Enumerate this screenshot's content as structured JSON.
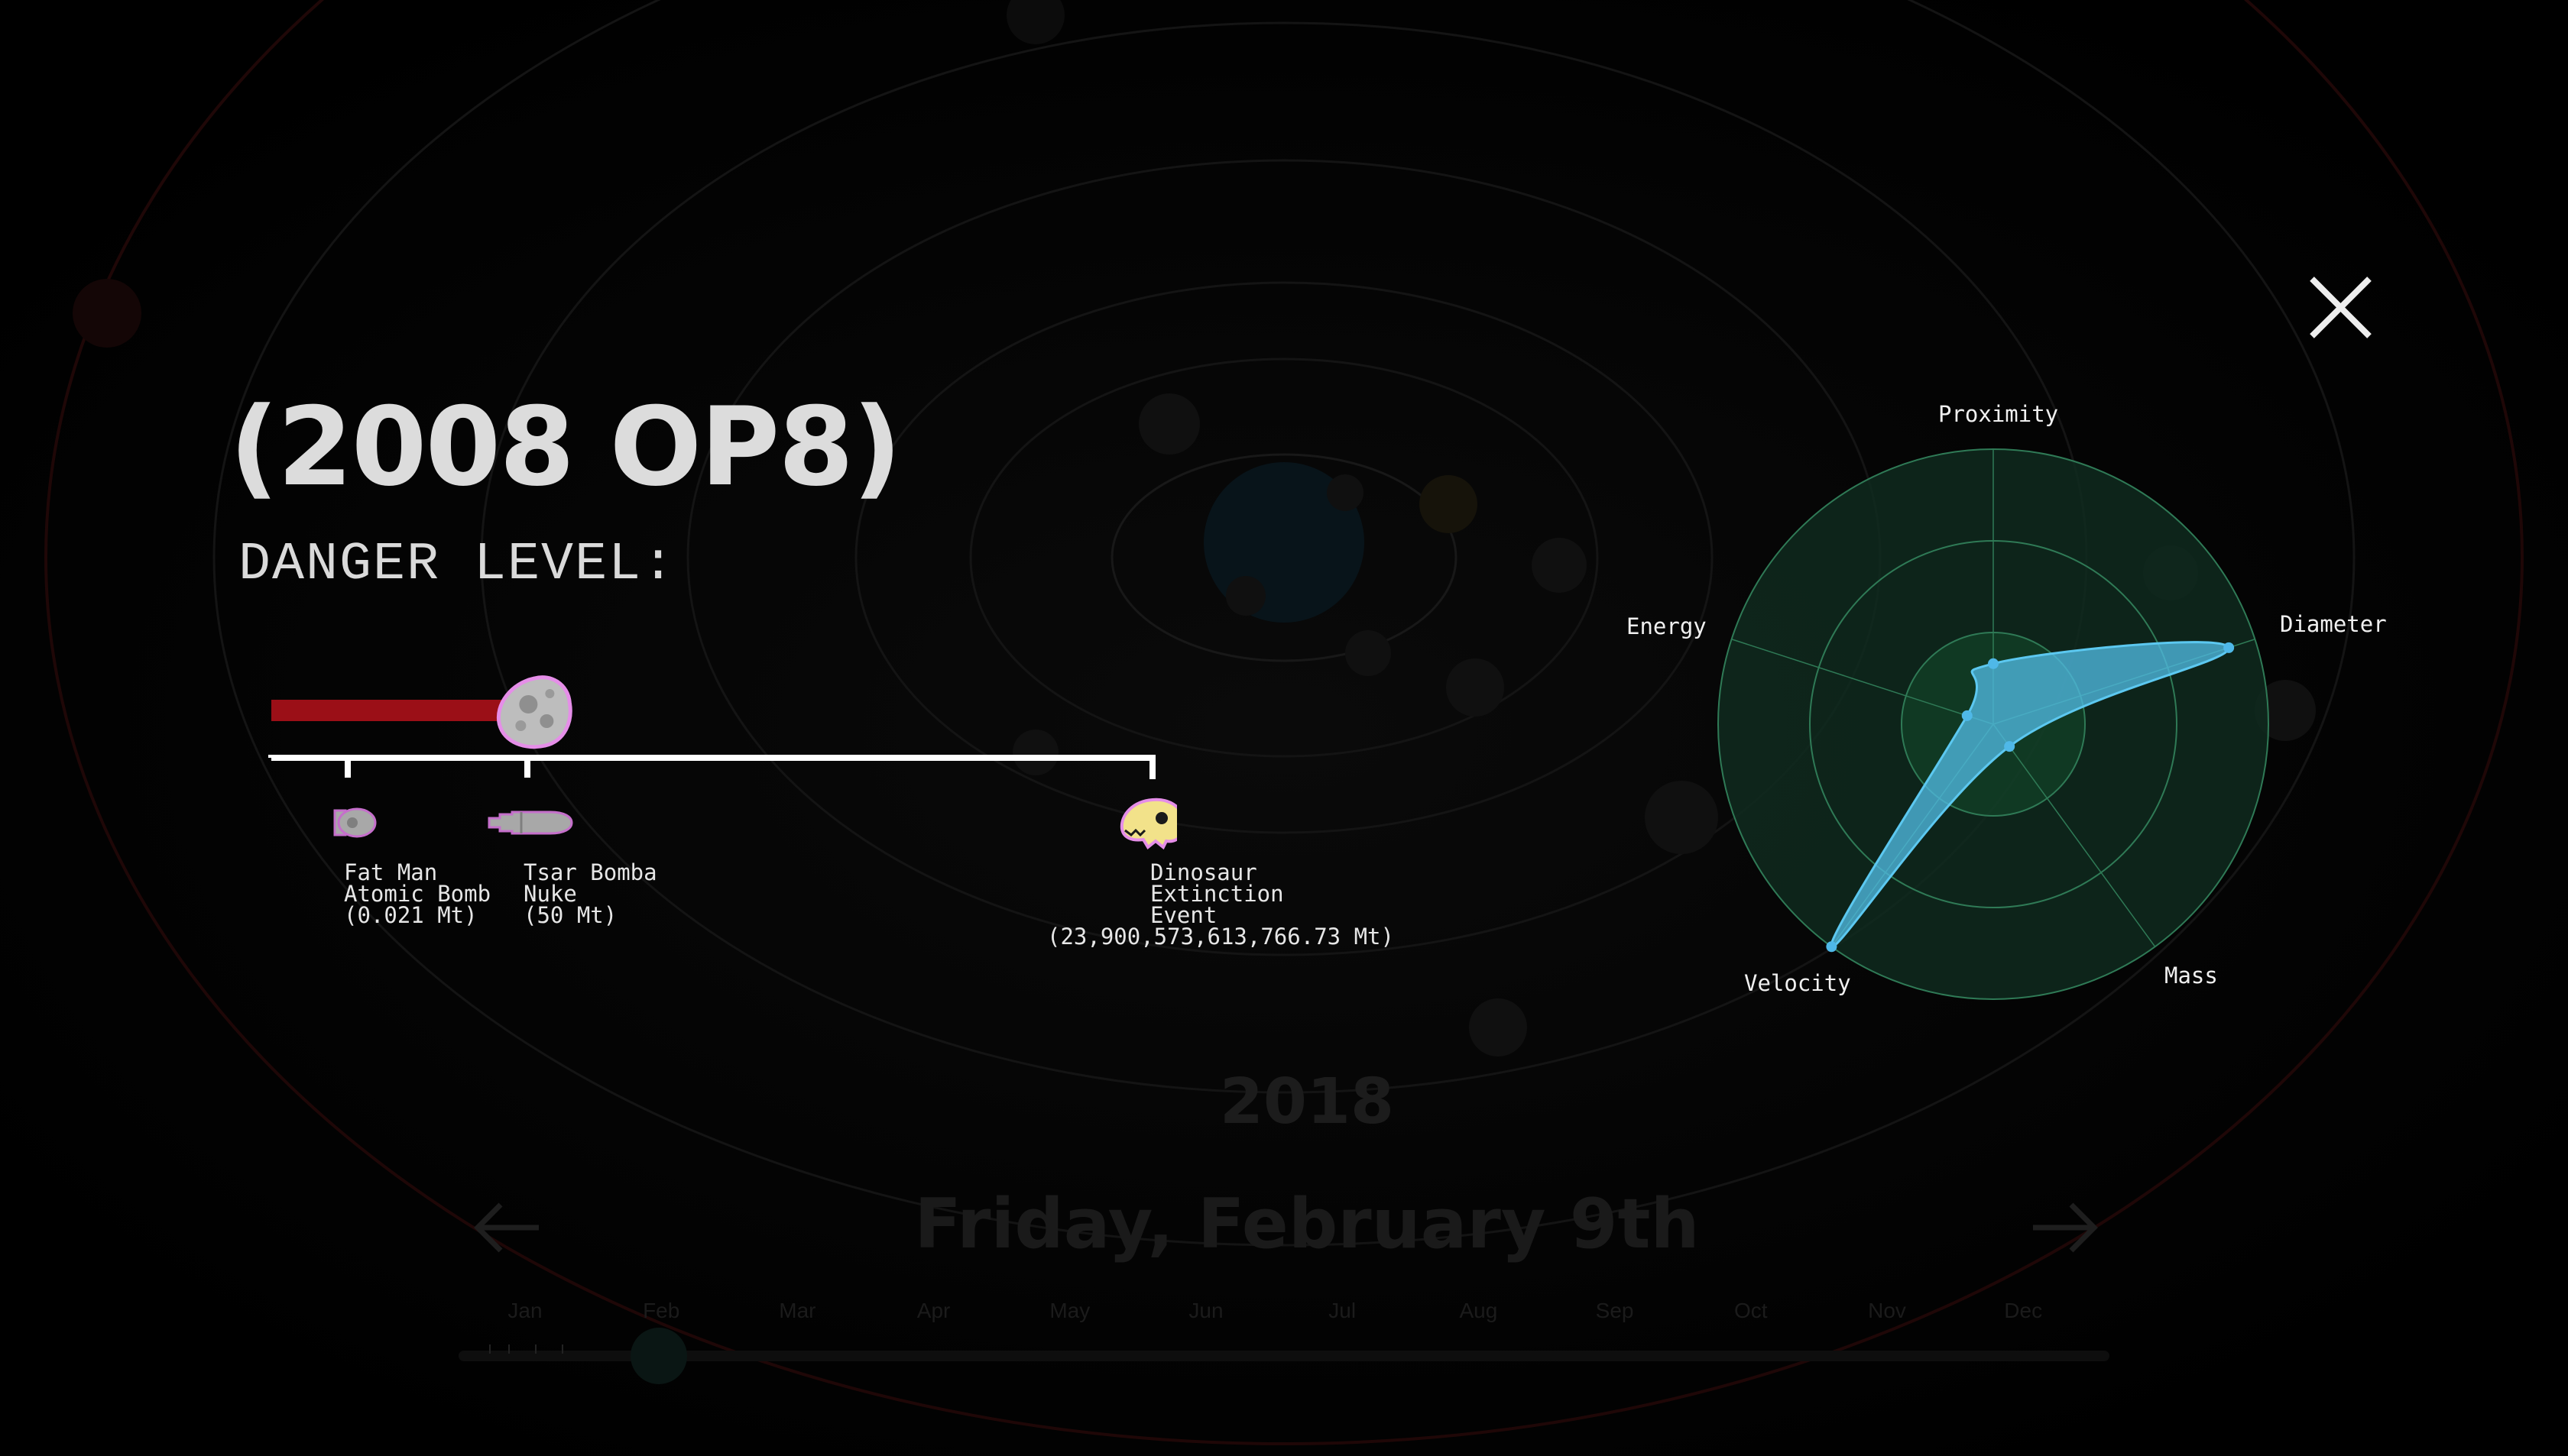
{
  "asteroid": {
    "name": "(2008 OP8)",
    "danger_label": "DANGER LEVEL:"
  },
  "danger_scale": {
    "level_fraction": 0.29,
    "markers": [
      {
        "name": "fat-man",
        "line1": "Fat Man",
        "line2": "Atomic Bomb",
        "line3": "(0.021 Mt)",
        "icon": "bomb-icon"
      },
      {
        "name": "tsar-bomba",
        "line1": "Tsar Bomba",
        "line2": "Nuke",
        "line3": "(50 Mt)",
        "icon": "nuke-icon"
      },
      {
        "name": "dinosaur",
        "line1": "Dinosaur",
        "line2": "Extinction",
        "line3": "Event",
        "line4": "(23,900,573,613,766.73 Mt)",
        "icon": "dinosaur-skull-icon"
      }
    ]
  },
  "radar": {
    "axes": [
      "Proximity",
      "Diameter",
      "Mass",
      "Velocity",
      "Energy"
    ],
    "values": [
      0.22,
      0.9,
      0.1,
      1.0,
      0.1
    ],
    "fill_color": "#4fb8e0",
    "grid_color": "#2f7a56",
    "bg_color": "#0f2a1e"
  },
  "close_icon": "close-icon",
  "background": {
    "year": "2018",
    "date": "Friday, February 9th",
    "prev_icon": "arrow-left-icon",
    "next_icon": "arrow-right-icon",
    "months": [
      "Jan",
      "Feb",
      "Mar",
      "Apr",
      "May",
      "Jun",
      "Jul",
      "Aug",
      "Sep",
      "Oct",
      "Nov",
      "Dec"
    ]
  }
}
